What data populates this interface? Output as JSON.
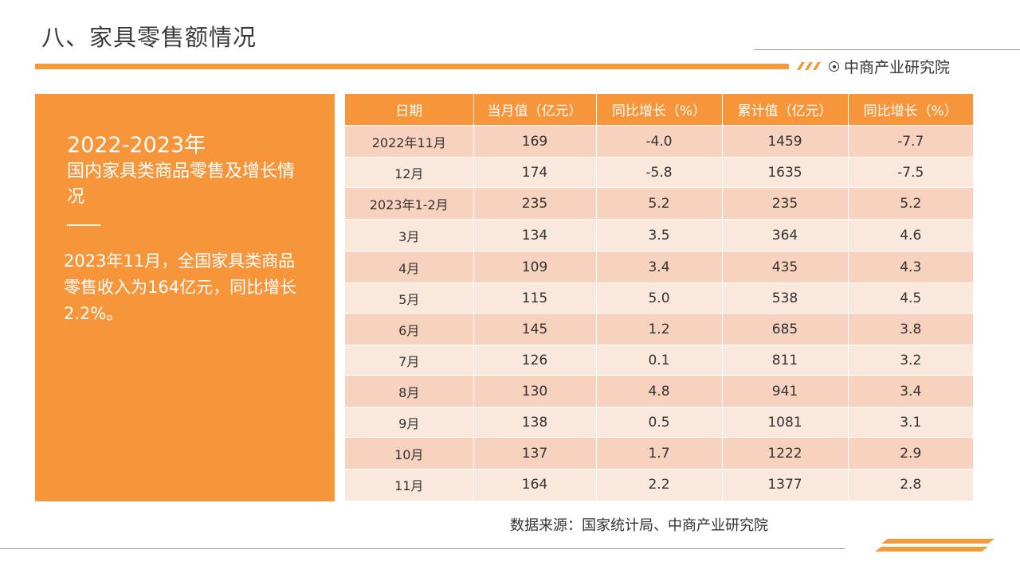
{
  "header": {
    "title": "八、家具零售额情况",
    "brand": "中商产业研究院",
    "accent_color": "#f39a3b"
  },
  "side_panel": {
    "heading": "2022-2023年",
    "subheading": "国内家具类商品零售及增长情况",
    "body": "2023年11月，全国家具类商品零售收入为164亿元，同比增长2.2%。",
    "background_color": "#f7953b"
  },
  "table": {
    "columns": [
      "日期",
      "当月值（亿元）",
      "同比增长（%）",
      "累计值（亿元）",
      "同比增长（%）"
    ],
    "rows": [
      [
        "2022年11月",
        "169",
        "-4.0",
        "1459",
        "-7.7"
      ],
      [
        "12月",
        "174",
        "-5.8",
        "1635",
        "-7.5"
      ],
      [
        "2023年1-2月",
        "235",
        "5.2",
        "235",
        "5.2"
      ],
      [
        "3月",
        "134",
        "3.5",
        "364",
        "4.6"
      ],
      [
        "4月",
        "109",
        "3.4",
        "435",
        "4.3"
      ],
      [
        "5月",
        "115",
        "5.0",
        "538",
        "4.5"
      ],
      [
        "6月",
        "145",
        "1.2",
        "685",
        "3.8"
      ],
      [
        "7月",
        "126",
        "0.1",
        "811",
        "3.2"
      ],
      [
        "8月",
        "130",
        "4.8",
        "941",
        "3.4"
      ],
      [
        "9月",
        "138",
        "0.5",
        "1081",
        "3.1"
      ],
      [
        "10月",
        "137",
        "1.7",
        "1222",
        "2.9"
      ],
      [
        "11月",
        "164",
        "2.2",
        "1377",
        "2.8"
      ]
    ]
  },
  "footer": {
    "source": "数据来源：国家统计局、中商产业研究院"
  }
}
